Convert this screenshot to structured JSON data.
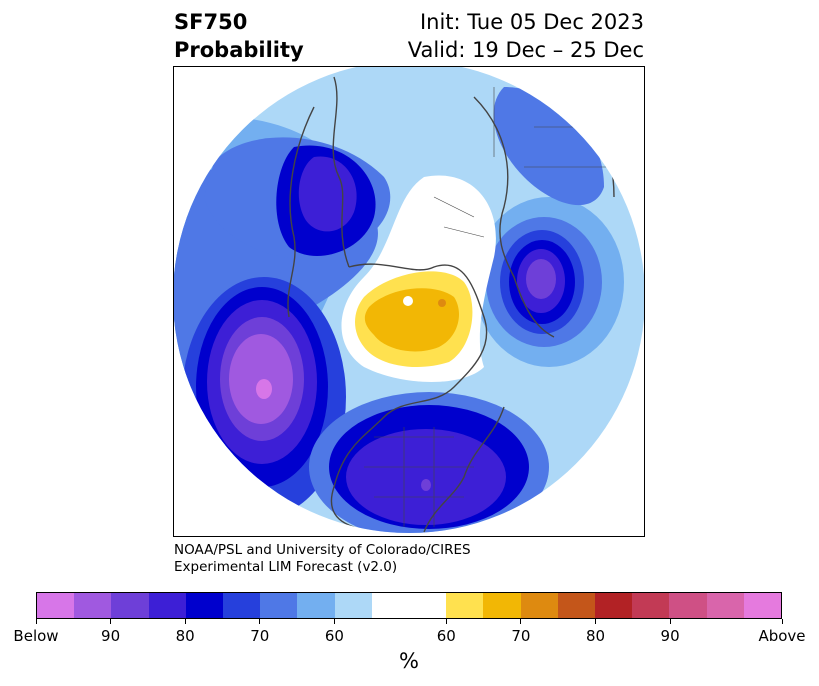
{
  "header": {
    "title_line1": "SF750",
    "title_line2": "Probability",
    "init_line": "Init: Tue 05 Dec 2023",
    "valid_line": "Valid: 19 Dec – 25 Dec"
  },
  "credit": {
    "line1": "NOAA/PSL and University of Colorado/CIRES",
    "line2": "Experimental LIM Forecast (v2.0)"
  },
  "colorbar": {
    "colors": [
      "#d776e8",
      "#a059e0",
      "#6e3fd8",
      "#3d1fd6",
      "#0000cd",
      "#2640dc",
      "#4f78e6",
      "#73aff0",
      "#add8f7",
      "#ffffff",
      "#ffffff",
      "#ffe14f",
      "#f2b705",
      "#de8a10",
      "#c4561a",
      "#b22225",
      "#c23a55",
      "#cf5085",
      "#d965ab",
      "#e57ade"
    ],
    "labels": [
      "Below",
      "90",
      "80",
      "70",
      "60",
      "60",
      "70",
      "80",
      "90",
      "Above"
    ],
    "unit": "%"
  },
  "map": {
    "projection": "north-polar-stereographic",
    "variable": "750 hPa streamfunction anomaly probability",
    "features": [
      "coastlines",
      "country-borders",
      "state-borders"
    ]
  }
}
